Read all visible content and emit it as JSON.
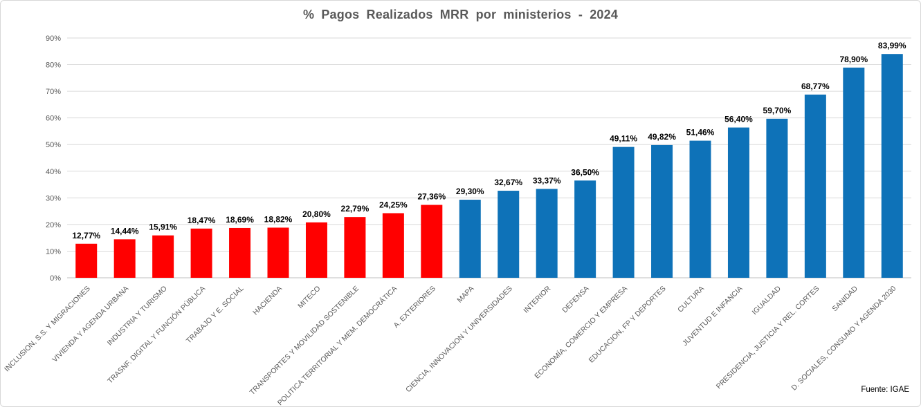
{
  "title": "% Pagos Realizados MRR por ministerios - 2024",
  "source": "Fuente: IGAE",
  "colors": {
    "red": "#FF0000",
    "blue": "#0E72B8",
    "title_text": "#595959",
    "axis_text": "#595959",
    "value_label_text": "#000000",
    "gridline": "#D9D9D9",
    "axis_line": "#BFBFBF"
  },
  "chart_data": {
    "type": "bar",
    "title": "% Pagos Realizados MRR por ministerios - 2024",
    "source": "Fuente: IGAE",
    "xlabel": "",
    "ylabel": "",
    "ylim": [
      0,
      90
    ],
    "ytick_step": 10,
    "ytick_labels": [
      "0%",
      "10%",
      "20%",
      "30%",
      "40%",
      "50%",
      "60%",
      "70%",
      "80%",
      "90%"
    ],
    "grid": true,
    "legend": "none",
    "categories": [
      "INCLUSION, S.S. Y MIGRACIONES",
      "VIVIENDA Y AGENDA URBANA",
      "INDUSTRIA Y TURISMO",
      "TRASNF. DIGITAL Y FUNCIÓN PÚBLICA",
      "TRABAJO Y E. SOCIAL",
      "HACIENDA",
      "MITECO",
      "TRANSPORTES Y MOVILIDAD SOSTENIBLE",
      "POLITICA TERRITORIAL Y MEM. DEMOCRÁTICA",
      "A. EXTERIORES",
      "MAPA",
      "CIENCIA, INNOVACION Y UNIVERSIDADES",
      "INTERIOR",
      "DEFENSA",
      "ECONOMÍA, COMERCIO Y EMPRESA",
      "EDUCACION, FP Y DEPORTES",
      "CULTURA",
      "JUVENTUD E INFANCIA",
      "IGUALDAD",
      "PRESIDENCIA, JUSTICIA Y REL. CORTES",
      "SANIDAD",
      "D. SOCIALES, CONSUMO Y AGENDA 2030"
    ],
    "values": [
      12.77,
      14.44,
      15.91,
      18.47,
      18.69,
      18.82,
      20.8,
      22.79,
      24.25,
      27.36,
      29.3,
      32.67,
      33.37,
      36.5,
      49.11,
      49.82,
      51.46,
      56.4,
      59.7,
      68.77,
      78.9,
      83.99
    ],
    "value_labels": [
      "12,77%",
      "14,44%",
      "15,91%",
      "18,47%",
      "18,69%",
      "18,82%",
      "20,80%",
      "22,79%",
      "24,25%",
      "27,36%",
      "29,30%",
      "32,67%",
      "33,37%",
      "36,50%",
      "49,11%",
      "49,82%",
      "51,46%",
      "56,40%",
      "59,70%",
      "68,77%",
      "78,90%",
      "83,99%"
    ],
    "bar_colors": [
      "red",
      "red",
      "red",
      "red",
      "red",
      "red",
      "red",
      "red",
      "red",
      "red",
      "blue",
      "blue",
      "blue",
      "blue",
      "blue",
      "blue",
      "blue",
      "blue",
      "blue",
      "blue",
      "blue",
      "blue"
    ]
  }
}
